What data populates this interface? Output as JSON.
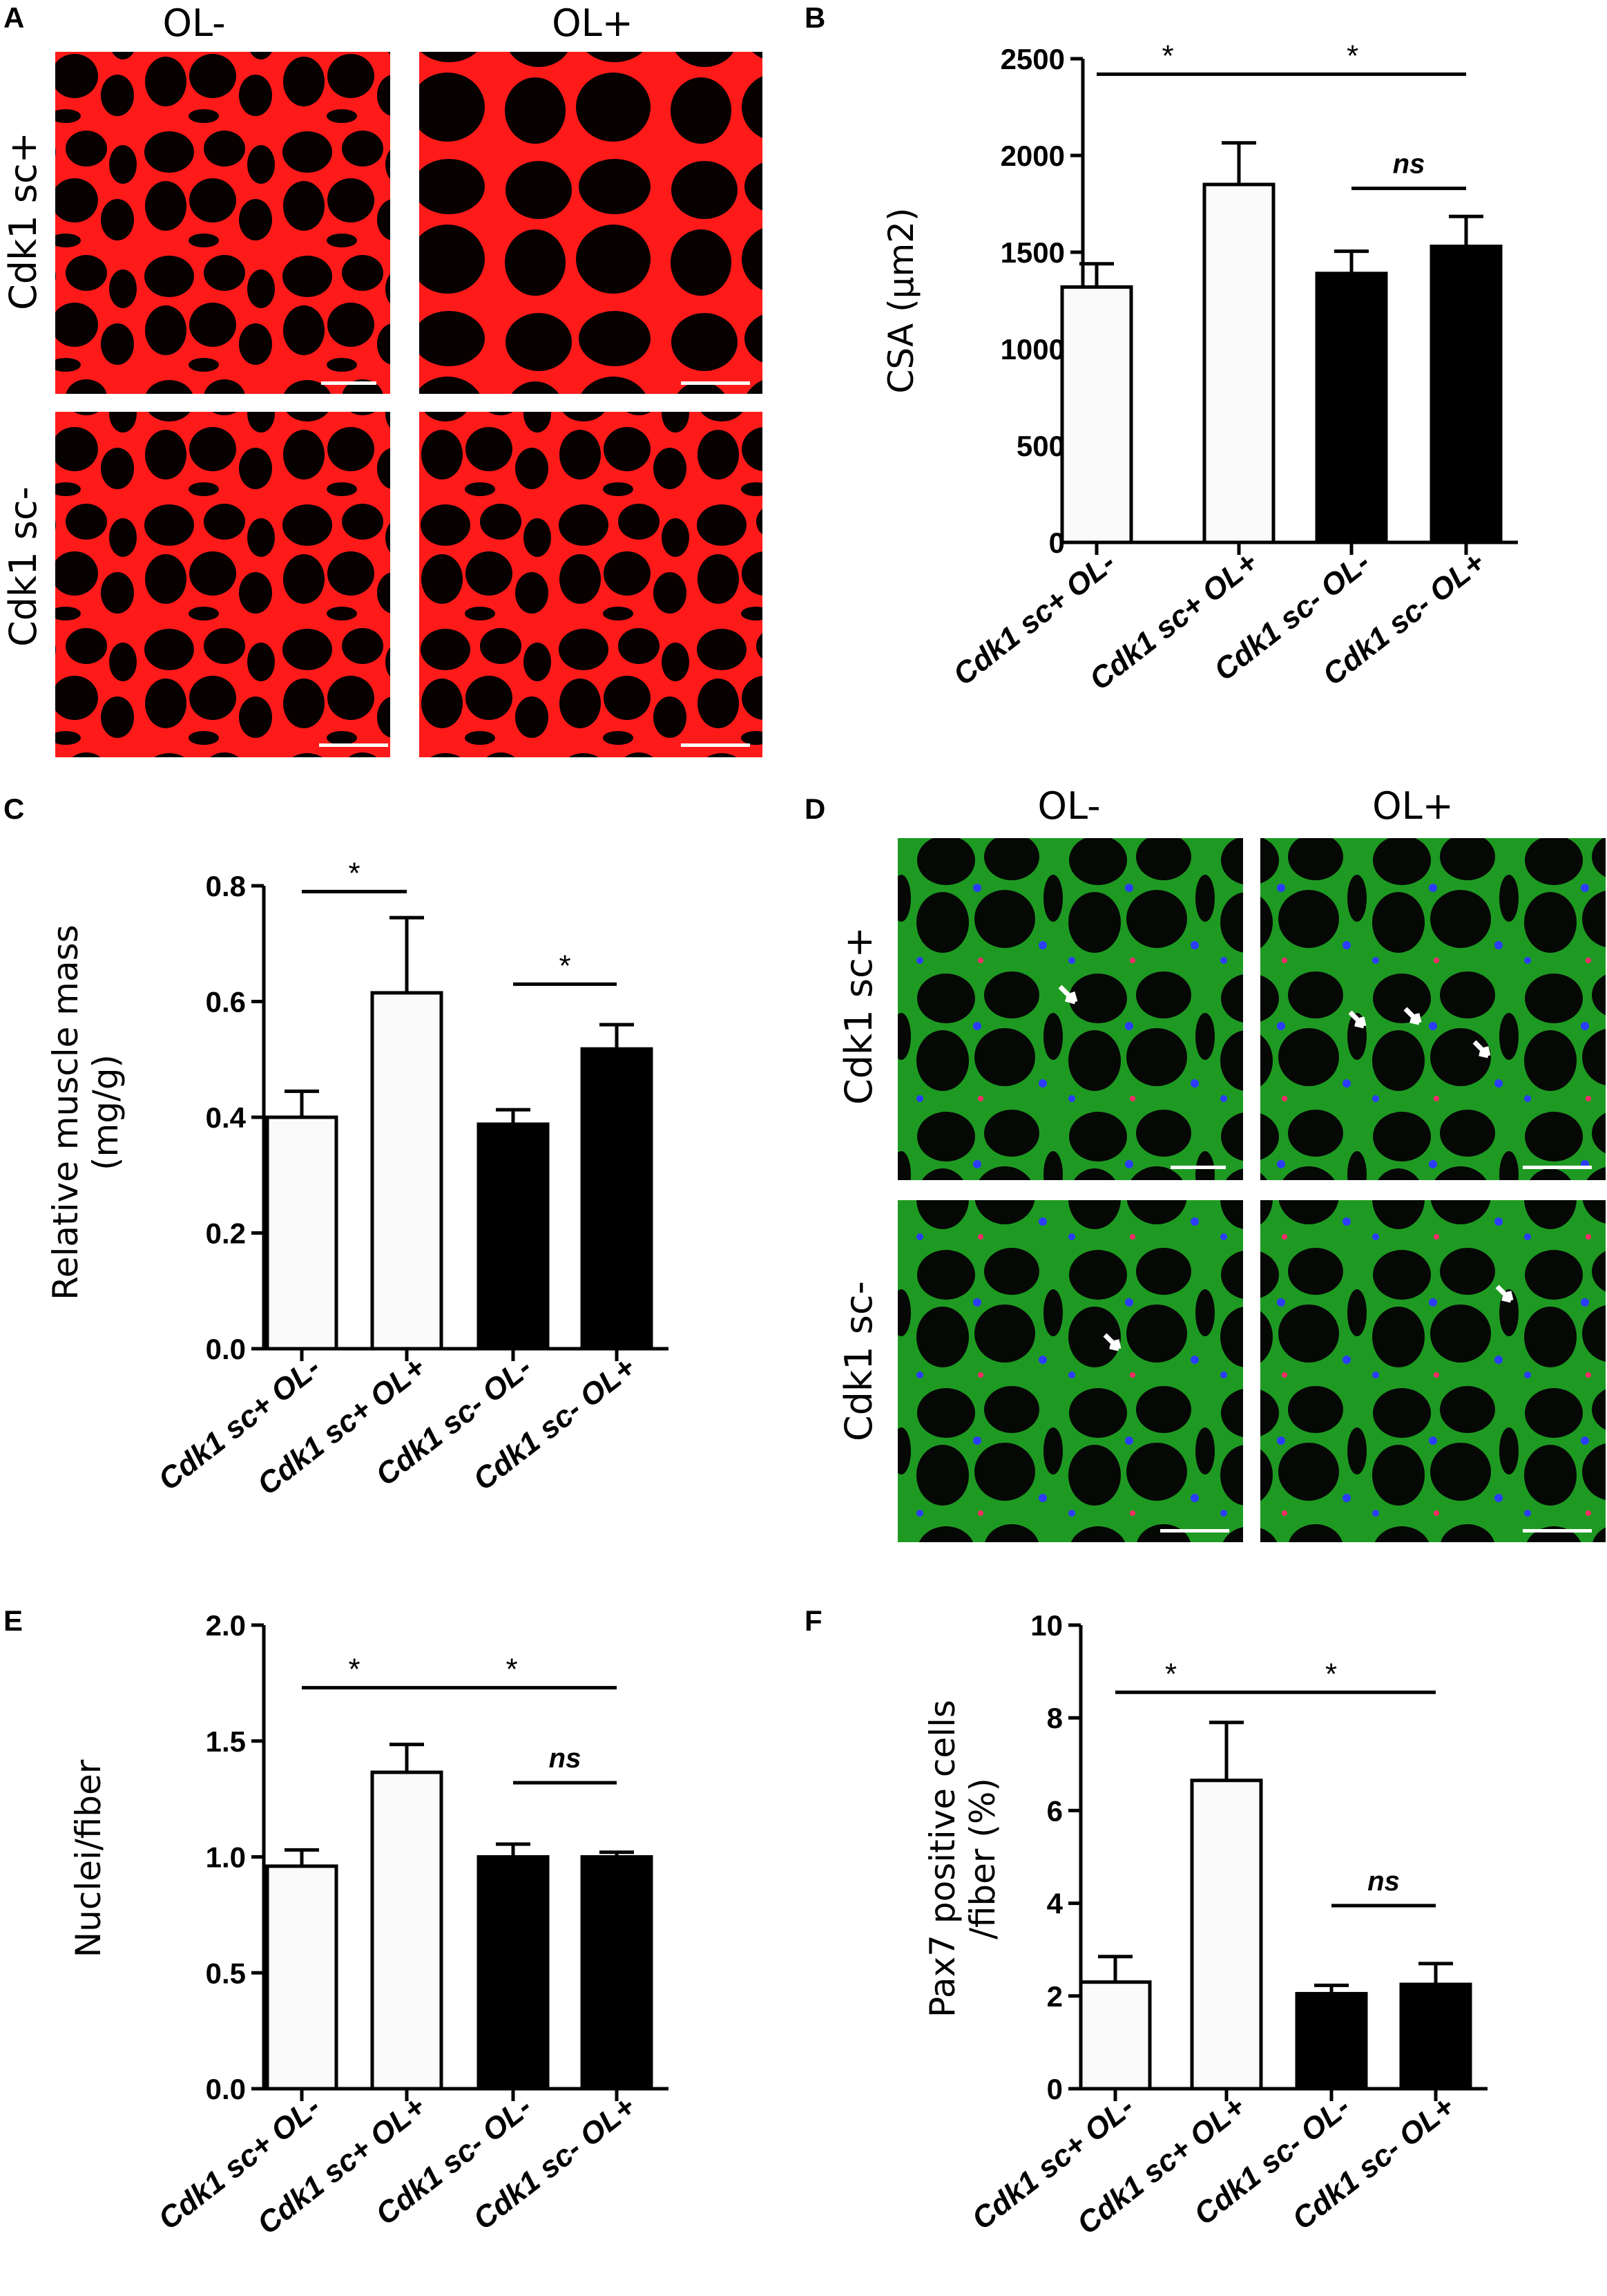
{
  "panels": {
    "A": {
      "letter": "A",
      "columns": [
        "OL-",
        "OL+"
      ],
      "rows": [
        "Cdk1 sc+",
        "Cdk1 sc-"
      ],
      "stain_color": "#ff1a1a"
    },
    "D": {
      "letter": "D",
      "columns": [
        "OL-",
        "OL+"
      ],
      "rows": [
        "Cdk1 sc+",
        "Cdk1 sc-"
      ],
      "stain_colors": {
        "membrane": "#2fbf2f",
        "nuclei": "#2b3cff",
        "marker": "#ff2a6a"
      }
    }
  },
  "chart_data": [
    {
      "panel": "B",
      "type": "bar",
      "categories": [
        "Cdk1 sc+ OL-",
        "Cdk1 sc+ OL+",
        "Cdk1 sc-  OL-",
        "Cdk1 sc-  OL+"
      ],
      "values": [
        1320,
        1850,
        1390,
        1530
      ],
      "errors": [
        120,
        215,
        115,
        155
      ],
      "bar_fills": [
        "#fafafa",
        "#fafafa",
        "#000000",
        "#000000"
      ],
      "ylabel": "CSA (µm2)",
      "ylim": [
        0,
        2500
      ],
      "yticks": [
        "0",
        "500",
        "1000",
        "1500",
        "2000",
        "2500"
      ],
      "significance": [
        {
          "from": 0,
          "to": 1,
          "label": "*",
          "level": 2420
        },
        {
          "from": 1,
          "to": 3,
          "label": "*",
          "level": 2420
        },
        {
          "from": 2,
          "to": 3,
          "label": "ns",
          "level": 1830
        }
      ]
    },
    {
      "panel": "C",
      "type": "bar",
      "categories": [
        "Cdk1 sc+ OL-",
        "Cdk1 sc+ OL+",
        "Cdk1 sc-  OL-",
        "Cdk1 sc-  OL+"
      ],
      "values": [
        0.4,
        0.615,
        0.388,
        0.518
      ],
      "errors": [
        0.045,
        0.13,
        0.025,
        0.042
      ],
      "bar_fills": [
        "#fafafa",
        "#fafafa",
        "#000000",
        "#000000"
      ],
      "ylabel": "Relative muscle mass\n(mg/g)",
      "ylim": [
        0,
        0.8
      ],
      "yticks": [
        "0.0",
        "0.2",
        "0.4",
        "0.6",
        "0.8"
      ],
      "significance": [
        {
          "from": 0,
          "to": 1,
          "label": "*",
          "level": 0.79
        },
        {
          "from": 2,
          "to": 3,
          "label": "*",
          "level": 0.63
        }
      ]
    },
    {
      "panel": "E",
      "type": "bar",
      "categories": [
        "Cdk1 sc+ OL-",
        "Cdk1 sc+ OL+",
        "Cdk1 sc-  OL-",
        "Cdk1 sc-  OL+"
      ],
      "values": [
        0.96,
        1.365,
        1.0,
        1.0
      ],
      "errors": [
        0.07,
        0.12,
        0.055,
        0.02
      ],
      "bar_fills": [
        "#fafafa",
        "#fafafa",
        "#000000",
        "#000000"
      ],
      "ylabel": "Nuclei/fiber",
      "ylim": [
        0,
        2.0
      ],
      "yticks": [
        "0.0",
        "0.5",
        "1.0",
        "1.5",
        "2.0"
      ],
      "significance": [
        {
          "from": 0,
          "to": 1,
          "label": "*",
          "level": 1.73
        },
        {
          "from": 1,
          "to": 3,
          "label": "*",
          "level": 1.73
        },
        {
          "from": 2,
          "to": 3,
          "label": "ns",
          "level": 1.32
        }
      ]
    },
    {
      "panel": "F",
      "type": "bar",
      "categories": [
        "Cdk1 sc+ OL-",
        "Cdk1 sc+ OL+",
        "Cdk1 sc-  OL-",
        "Cdk1 sc-  OL+"
      ],
      "values": [
        2.3,
        6.65,
        2.05,
        2.25
      ],
      "errors": [
        0.55,
        1.25,
        0.18,
        0.45
      ],
      "bar_fills": [
        "#fafafa",
        "#fafafa",
        "#000000",
        "#000000"
      ],
      "ylabel": "Pax7 positive cells\n/fiber (%)",
      "ylim": [
        0,
        10
      ],
      "yticks": [
        "0",
        "2",
        "4",
        "6",
        "8",
        "10"
      ],
      "significance": [
        {
          "from": 0,
          "to": 1,
          "label": "*",
          "level": 8.55
        },
        {
          "from": 1,
          "to": 3,
          "label": "*",
          "level": 8.55
        },
        {
          "from": 2,
          "to": 3,
          "label": "ns",
          "level": 3.95
        }
      ]
    }
  ]
}
